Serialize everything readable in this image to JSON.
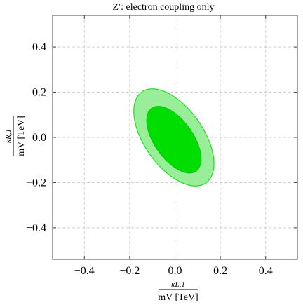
{
  "chart_data": {
    "type": "contour",
    "title": "Z′: electron coupling only",
    "xlabel": {
      "numerator": "κL,1",
      "denominator": "mV [TeV]"
    },
    "ylabel": {
      "numerator": "κR,1",
      "denominator": "mV [TeV]"
    },
    "xlim": [
      -0.54,
      0.54
    ],
    "ylim": [
      -0.54,
      0.54
    ],
    "xticks": [
      -0.4,
      -0.2,
      0.0,
      0.2,
      0.4
    ],
    "yticks": [
      -0.4,
      -0.2,
      0.0,
      0.2,
      0.4
    ],
    "xtick_labels": [
      "−0.4",
      "−0.2",
      "0.0",
      "0.2",
      "0.4"
    ],
    "ytick_labels": [
      "−0.4",
      "−0.2",
      "0.0",
      "0.2",
      "0.4"
    ],
    "grid": true,
    "regions": [
      {
        "level": "outer",
        "center": [
          -0.005,
          0.0
        ],
        "rx": 0.246,
        "ry": 0.13,
        "rotation_deg": -55,
        "fill": "#99ee99",
        "stroke": "#22dd22"
      },
      {
        "level": "inner",
        "center": [
          -0.005,
          -0.01
        ],
        "rx": 0.17,
        "ry": 0.085,
        "rotation_deg": -55,
        "fill": "#00dd00",
        "stroke": "#00cc00"
      }
    ]
  },
  "colors": {
    "grid": "#cfcfcf",
    "frame": "#444444"
  }
}
